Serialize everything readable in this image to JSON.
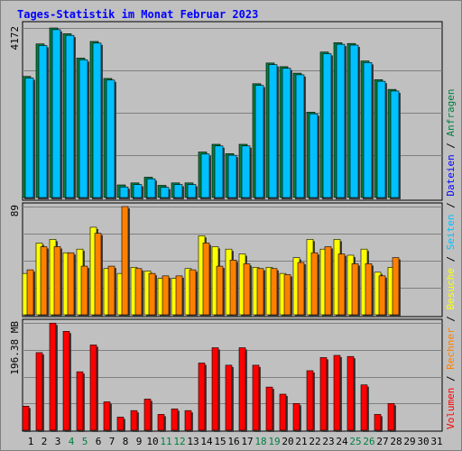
{
  "colors": {
    "background": "#c0c0c0",
    "title": "#0000ff",
    "anfragen": "#008040",
    "dateien": "#0000ff",
    "seiten": "#00c0ff",
    "besuche": "#ffff00",
    "rechner": "#ff8000",
    "volumen": "#ff0000"
  },
  "chart_data": {
    "type": "bar",
    "title": "Tages-Statistik im Monat Februar 2023",
    "categories": [
      "1",
      "2",
      "3",
      "4",
      "5",
      "6",
      "7",
      "8",
      "9",
      "10",
      "11",
      "12",
      "13",
      "14",
      "15",
      "16",
      "17",
      "18",
      "19",
      "20",
      "21",
      "22",
      "23",
      "24",
      "25",
      "26",
      "27",
      "28",
      "29",
      "30",
      "31"
    ],
    "weekend_days": [
      "4",
      "5",
      "11",
      "12",
      "18",
      "19",
      "25",
      "26"
    ],
    "legend_right": [
      {
        "label": "Volumen",
        "color": "#ff0000"
      },
      {
        "label": "Rechner",
        "color": "#ff8000"
      },
      {
        "label": "Besuche",
        "color": "#ffff00"
      },
      {
        "label": "Seiten",
        "color": "#00c0ff"
      },
      {
        "label": "Dateien",
        "color": "#0000ff"
      },
      {
        "label": "Anfragen",
        "color": "#008040"
      }
    ],
    "separator": " / ",
    "panels": [
      {
        "id": "top",
        "max_label": "4172",
        "max": 4172,
        "series": [
          {
            "name": "Anfragen",
            "values": [
              2980,
              3780,
              4172,
              4030,
              3430,
              3840,
              2930,
              310,
              360,
              500,
              300,
              360,
              360,
              1120,
              1310,
              1080,
              1310,
              2800,
              3310,
              3220,
              3060,
              2100,
              3580,
              3810,
              3790,
              3360,
              2900,
              2660,
              0,
              0,
              0
            ]
          },
          {
            "name": "Seiten",
            "values": [
              2940,
              3740,
              4130,
              3990,
              3390,
              3800,
              2890,
              260,
              320,
              460,
              250,
              320,
              320,
              1070,
              1270,
              1040,
              1270,
              2760,
              3270,
              3180,
              3020,
              2060,
              3540,
              3770,
              3750,
              3320,
              2860,
              2620,
              0,
              0,
              0
            ]
          }
        ]
      },
      {
        "id": "middle",
        "max_label": "89",
        "max": 89,
        "series": [
          {
            "name": "Besuche",
            "values": [
              34,
              59,
              62,
              51,
              54,
              72,
              38,
              34,
              39,
              36,
              30,
              30,
              38,
              65,
              56,
              54,
              50,
              39,
              39,
              34,
              47,
              62,
              54,
              62,
              49,
              54,
              35,
              39,
              0,
              0,
              0
            ]
          },
          {
            "name": "Rechner",
            "values": [
              37,
              56,
              56,
              51,
              40,
              67,
              40,
              89,
              38,
              34,
              32,
              32,
              37,
              59,
              40,
              45,
              42,
              38,
              38,
              33,
              43,
              51,
              56,
              50,
              42,
              42,
              32,
              47,
              0,
              0,
              0
            ]
          }
        ]
      },
      {
        "id": "bottom",
        "max_label": "196.38 MB",
        "max": 196.38,
        "series": [
          {
            "name": "Volumen",
            "values": [
              44,
              142,
              196,
              181,
              107,
              156,
              52,
              24,
              36,
              57,
              29,
              39,
              36,
              123,
              151,
              119,
              151,
              119,
              79,
              66,
              49,
              109,
              133,
              137,
              135,
              83,
              29,
              49,
              0,
              0,
              0
            ]
          }
        ]
      }
    ]
  }
}
